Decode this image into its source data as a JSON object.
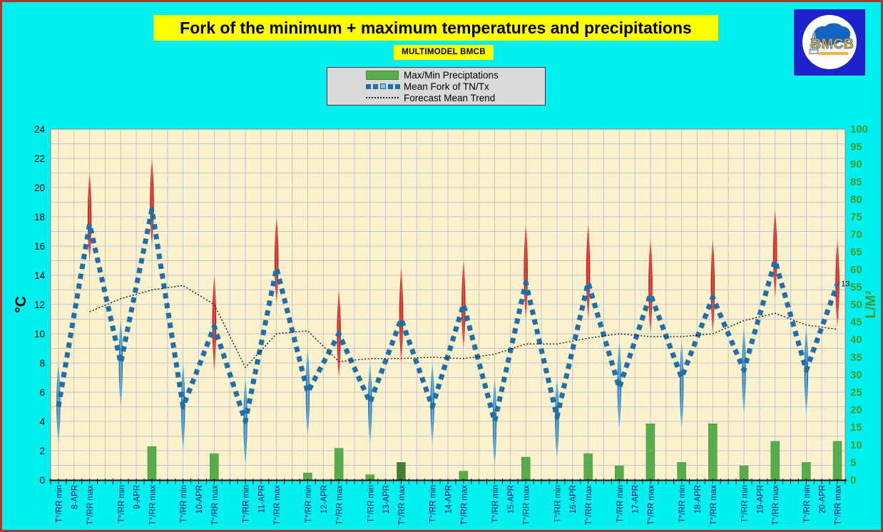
{
  "header": {
    "title": "Fork of the minimum + maximum temperatures and precipitations",
    "subtitle": "MULTIMODEL BMCB"
  },
  "logo": {
    "text": "BMCB"
  },
  "legend": {
    "items": [
      {
        "label": "Max/Min Preciptations",
        "swatch": "green-bar"
      },
      {
        "label": "Mean Fork of TN/Tx",
        "swatch": "blue-dashed"
      },
      {
        "label": "Forecast Mean Trend",
        "swatch": "black-dotted"
      }
    ]
  },
  "colors": {
    "background": "#00EFEF",
    "frame": "#A63A2E",
    "banner": "#FFFF00",
    "plot_bg": "#FBF2CD",
    "grid": "#C3C3CF",
    "mean_fork_line": "#1F6FA8",
    "red_spike_edge": "#A50F0F",
    "red_spike_mid": "#F25353",
    "blue_spike_edge": "#1B5F8E",
    "blue_spike_mid": "#66BBEA",
    "precip_bar": "#57AD4B",
    "precip_bar_dark": "#447C36",
    "right_axis": "#3F9B2F",
    "x_label": "#161660",
    "trend_line": "#111111"
  },
  "chart_data": {
    "type": "combo",
    "title": "Fork of the minimum + maximum temperatures and precipitations",
    "subtitle": "MULTIMODEL BMCB",
    "legend_position": "top",
    "grid": true,
    "left_axis": {
      "label": "°C",
      "min": 0,
      "max": 24,
      "step": 2
    },
    "right_axis": {
      "label": "L/M²",
      "min": 0,
      "max": 100,
      "step": 5
    },
    "x_labels_per_day": [
      "T°/RR min",
      "(date)",
      "T°/RR max"
    ],
    "series_notes": "per day: min point and max point; mean = Mean Fork of TN/Tx (°C), lo/hi = fork range (°C), precip = Max/Min Preciptations bar (L/M²)",
    "days": [
      {
        "date": "8-APR",
        "min": {
          "mean": 5,
          "lo": 2.5,
          "hi": 8,
          "precip": 0
        },
        "max": {
          "mean": 17.5,
          "lo": 15,
          "hi": 21,
          "precip": 0
        }
      },
      {
        "date": "9-APR",
        "min": {
          "mean": 8,
          "lo": 5,
          "hi": 11,
          "precip": 0
        },
        "max": {
          "mean": 18.5,
          "lo": 16,
          "hi": 22,
          "precip": 9.5
        }
      },
      {
        "date": "10-APR",
        "min": {
          "mean": 5,
          "lo": 2,
          "hi": 8,
          "precip": 0
        },
        "max": {
          "mean": 10.5,
          "lo": 7.5,
          "hi": 14,
          "precip": 7.5
        }
      },
      {
        "date": "11-APR",
        "min": {
          "mean": 4,
          "lo": 1,
          "hi": 7,
          "precip": 0
        },
        "max": {
          "mean": 14.5,
          "lo": 12,
          "hi": 18,
          "precip": 0
        }
      },
      {
        "date": "12-APR",
        "min": {
          "mean": 6,
          "lo": 3,
          "hi": 9,
          "precip": 2
        },
        "max": {
          "mean": 10,
          "lo": 7,
          "hi": 13,
          "precip": 9
        }
      },
      {
        "date": "13-APR",
        "min": {
          "mean": 5.3,
          "lo": 2.5,
          "hi": 8,
          "precip": 1.5
        },
        "max": {
          "mean": 11,
          "lo": 8,
          "hi": 14.5,
          "precip": 5,
          "precip_dark": true
        }
      },
      {
        "date": "14-APR",
        "min": {
          "mean": 5,
          "lo": 2.5,
          "hi": 8,
          "precip": 0
        },
        "max": {
          "mean": 12,
          "lo": 9,
          "hi": 15,
          "precip": 2.5
        }
      },
      {
        "date": "15-APR",
        "min": {
          "mean": 4,
          "lo": 1,
          "hi": 7,
          "precip": 0
        },
        "max": {
          "mean": 13.5,
          "lo": 11,
          "hi": 17.5,
          "precip": 6.5
        }
      },
      {
        "date": "16-APR",
        "min": {
          "mean": 4.3,
          "lo": 1.5,
          "hi": 7,
          "precip": 0
        },
        "max": {
          "mean": 13.5,
          "lo": 11,
          "hi": 17.5,
          "precip": 7.5
        }
      },
      {
        "date": "17-APR",
        "min": {
          "mean": 6.3,
          "lo": 3.5,
          "hi": 9.5,
          "precip": 4
        },
        "max": {
          "mean": 12.7,
          "lo": 10,
          "hi": 16.5,
          "precip": 16
        }
      },
      {
        "date": "18-APR",
        "min": {
          "mean": 7,
          "lo": 3.5,
          "hi": 9.5,
          "precip": 5
        },
        "max": {
          "mean": 12.5,
          "lo": 10,
          "hi": 16.5,
          "precip": 16
        }
      },
      {
        "date": "19-APR",
        "min": {
          "mean": 7.5,
          "lo": 4.5,
          "hi": 10.5,
          "precip": 4
        },
        "max": {
          "mean": 15,
          "lo": 12.5,
          "hi": 18.5,
          "precip": 11
        }
      },
      {
        "date": "20-APR",
        "min": {
          "mean": 7.5,
          "lo": 4.5,
          "hi": 10.5,
          "precip": 5
        },
        "max": {
          "mean": 13.4,
          "lo": 10.5,
          "hi": 16.5,
          "precip": 11,
          "label": "13"
        }
      }
    ],
    "trend": [
      null,
      11.5,
      12.4,
      13,
      13.3,
      12,
      7.7,
      10,
      10.2,
      8.1,
      8.3,
      8.3,
      8.4,
      8.3,
      8.6,
      9.3,
      9.3,
      9.7,
      10,
      9.8,
      9.8,
      10,
      10.9,
      11.4,
      10.6,
      10.3
    ]
  }
}
